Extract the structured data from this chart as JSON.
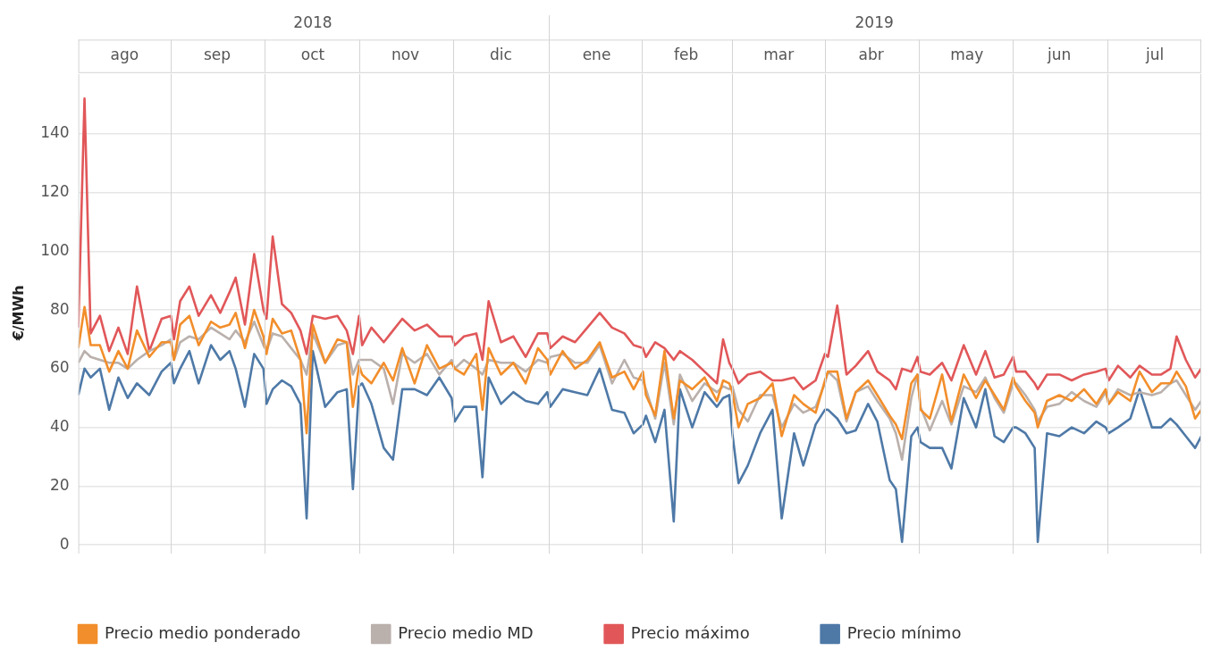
{
  "chart_data": {
    "type": "line",
    "ylabel": "€/MWh",
    "xlim": [
      "2018-08-01",
      "2019-07-31"
    ],
    "ylim": [
      -3,
      161
    ],
    "yticks": [
      0,
      20,
      40,
      60,
      80,
      100,
      120,
      140
    ],
    "xticks": [
      {
        "value": "2018-08-16",
        "label": "ago"
      },
      {
        "value": "2018-09-15",
        "label": "sep"
      },
      {
        "value": "2018-10-16",
        "label": "oct"
      },
      {
        "value": "2018-11-15",
        "label": "nov"
      },
      {
        "value": "2018-12-16",
        "label": "dic"
      },
      {
        "value": "2019-01-16",
        "label": "ene"
      },
      {
        "value": "2019-02-14",
        "label": "feb"
      },
      {
        "value": "2019-03-16",
        "label": "mar"
      },
      {
        "value": "2019-04-15",
        "label": "abr"
      },
      {
        "value": "2019-05-16",
        "label": "may"
      },
      {
        "value": "2019-06-15",
        "label": "jun"
      },
      {
        "value": "2019-07-16",
        "label": "jul"
      }
    ],
    "x2lim": [
      "2018-08-01",
      "2019-07-31"
    ],
    "x2ticks": [
      {
        "value": "2018-10-16",
        "label": "2018"
      },
      {
        "value": "2019-04-16",
        "label": "2019"
      }
    ],
    "grid": true,
    "legend": "bottom",
    "line_style": "solid",
    "x": [
      "2018-08-01",
      "2018-08-03",
      "2018-08-05",
      "2018-08-08",
      "2018-08-11",
      "2018-08-14",
      "2018-08-17",
      "2018-08-20",
      "2018-08-24",
      "2018-08-28",
      "2018-08-31",
      "2018-09-01",
      "2018-09-03",
      "2018-09-06",
      "2018-09-09",
      "2018-09-13",
      "2018-09-16",
      "2018-09-19",
      "2018-09-21",
      "2018-09-24",
      "2018-09-27",
      "2018-09-30",
      "2018-10-01",
      "2018-10-03",
      "2018-10-06",
      "2018-10-09",
      "2018-10-12",
      "2018-10-14",
      "2018-10-16",
      "2018-10-20",
      "2018-10-24",
      "2018-10-27",
      "2018-10-29",
      "2018-10-31",
      "2018-11-01",
      "2018-11-04",
      "2018-11-08",
      "2018-11-11",
      "2018-11-14",
      "2018-11-18",
      "2018-11-22",
      "2018-11-26",
      "2018-11-30",
      "2018-12-01",
      "2018-12-04",
      "2018-12-08",
      "2018-12-10",
      "2018-12-12",
      "2018-12-16",
      "2018-12-20",
      "2018-12-24",
      "2018-12-28",
      "2018-12-31",
      "2019-01-01",
      "2019-01-05",
      "2019-01-09",
      "2019-01-13",
      "2019-01-17",
      "2019-01-21",
      "2019-01-25",
      "2019-01-28",
      "2019-01-31",
      "2019-02-01",
      "2019-02-04",
      "2019-02-07",
      "2019-02-10",
      "2019-02-12",
      "2019-02-16",
      "2019-02-20",
      "2019-02-24",
      "2019-02-26",
      "2019-02-28",
      "2019-03-01",
      "2019-03-03",
      "2019-03-06",
      "2019-03-10",
      "2019-03-14",
      "2019-03-17",
      "2019-03-21",
      "2019-03-24",
      "2019-03-28",
      "2019-03-31",
      "2019-04-01",
      "2019-04-04",
      "2019-04-07",
      "2019-04-10",
      "2019-04-14",
      "2019-04-17",
      "2019-04-21",
      "2019-04-23",
      "2019-04-25",
      "2019-04-28",
      "2019-04-30",
      "2019-05-01",
      "2019-05-04",
      "2019-05-08",
      "2019-05-11",
      "2019-05-15",
      "2019-05-19",
      "2019-05-22",
      "2019-05-25",
      "2019-05-28",
      "2019-05-31",
      "2019-06-01",
      "2019-06-04",
      "2019-06-07",
      "2019-06-08",
      "2019-06-11",
      "2019-06-15",
      "2019-06-19",
      "2019-06-23",
      "2019-06-27",
      "2019-06-30",
      "2019-07-01",
      "2019-07-04",
      "2019-07-08",
      "2019-07-11",
      "2019-07-15",
      "2019-07-18",
      "2019-07-21",
      "2019-07-23",
      "2019-07-26",
      "2019-07-29",
      "2019-07-31"
    ],
    "series": [
      {
        "name": "Precio medio ponderado",
        "color": "#f28e2b",
        "values": [
          67,
          81,
          68,
          68,
          59,
          66,
          60,
          73,
          64,
          69,
          69,
          63,
          75,
          78,
          68,
          76,
          74,
          75,
          79,
          67,
          80,
          71,
          65,
          77,
          72,
          73,
          63,
          38,
          75,
          62,
          70,
          69,
          47,
          61,
          58,
          55,
          62,
          56,
          67,
          55,
          68,
          60,
          62,
          60,
          58,
          65,
          46,
          67,
          58,
          62,
          55,
          67,
          63,
          58,
          66,
          60,
          63,
          69,
          57,
          59,
          53,
          59,
          51,
          44,
          66,
          43,
          56,
          53,
          57,
          49,
          56,
          55,
          52,
          40,
          48,
          50,
          55,
          37,
          51,
          48,
          45,
          56,
          59,
          59,
          43,
          52,
          56,
          51,
          44,
          41,
          36,
          55,
          58,
          46,
          43,
          58,
          42,
          58,
          50,
          56,
          51,
          46,
          57,
          54,
          49,
          45,
          40,
          49,
          51,
          49,
          53,
          48,
          53,
          48,
          52,
          49,
          59,
          52,
          55,
          55,
          59,
          54,
          43,
          46
        ]
      },
      {
        "name": "Precio medio MD",
        "color": "#bab0ac",
        "values": [
          62,
          66,
          64,
          63,
          62,
          62,
          60,
          63,
          66,
          68,
          70,
          63,
          69,
          71,
          70,
          74,
          72,
          70,
          73,
          69,
          76,
          68,
          66,
          72,
          71,
          67,
          63,
          58,
          72,
          62,
          68,
          69,
          58,
          63,
          63,
          63,
          60,
          48,
          65,
          62,
          65,
          58,
          63,
          60,
          63,
          60,
          58,
          63,
          62,
          62,
          59,
          63,
          62,
          64,
          65,
          62,
          62,
          68,
          55,
          63,
          57,
          56,
          53,
          43,
          62,
          41,
          58,
          49,
          55,
          52,
          54,
          53,
          54,
          46,
          42,
          51,
          51,
          40,
          48,
          45,
          47,
          55,
          59,
          56,
          42,
          52,
          54,
          49,
          43,
          38,
          29,
          50,
          58,
          47,
          39,
          49,
          41,
          54,
          52,
          57,
          50,
          45,
          55,
          55,
          51,
          46,
          42,
          47,
          48,
          52,
          49,
          47,
          52,
          48,
          53,
          51,
          52,
          51,
          52,
          55,
          56,
          51,
          46,
          49
        ]
      },
      {
        "name": "Precio máximo",
        "color": "#e15759",
        "values": [
          74,
          152,
          72,
          78,
          66,
          74,
          65,
          88,
          66,
          77,
          78,
          70,
          83,
          88,
          78,
          85,
          79,
          86,
          91,
          75,
          99,
          80,
          77,
          105,
          82,
          79,
          73,
          65,
          78,
          77,
          78,
          73,
          65,
          78,
          68,
          74,
          69,
          73,
          77,
          73,
          75,
          71,
          71,
          68,
          71,
          72,
          63,
          83,
          69,
          71,
          64,
          72,
          72,
          67,
          71,
          69,
          74,
          79,
          74,
          72,
          68,
          67,
          64,
          69,
          67,
          63,
          66,
          63,
          59,
          55,
          70,
          62,
          60,
          55,
          58,
          59,
          56,
          56,
          57,
          53,
          56,
          65,
          64,
          81.5,
          58,
          61,
          66,
          59,
          56,
          53,
          60,
          59,
          64,
          59,
          58,
          62,
          56,
          68,
          58,
          66,
          57,
          58,
          64,
          59,
          59,
          55,
          53,
          58,
          58,
          56,
          58,
          59,
          60,
          56,
          61,
          57,
          61,
          58,
          58,
          60,
          71,
          63,
          57,
          60
        ]
      },
      {
        "name": "Precio mínimo",
        "color": "#4e79a7",
        "values": [
          51,
          60,
          57,
          60,
          46,
          57,
          50,
          55,
          51,
          59,
          62,
          55,
          60,
          66,
          55,
          68,
          63,
          66,
          60,
          47,
          65,
          60,
          48,
          53,
          56,
          54,
          48,
          9,
          66,
          47,
          52,
          53,
          19,
          54,
          55,
          48,
          33,
          29,
          53,
          53,
          51,
          57,
          50,
          42,
          47,
          47,
          23,
          57,
          48,
          52,
          49,
          48,
          52,
          47,
          53,
          52,
          51,
          60,
          46,
          45,
          38,
          41,
          44,
          35,
          46,
          8,
          53,
          40,
          52,
          47,
          50,
          51,
          38,
          21,
          27,
          38,
          46,
          9,
          38,
          27,
          41,
          46,
          46,
          43,
          38,
          39,
          48,
          42,
          22,
          19,
          1,
          37,
          40,
          35,
          33,
          33,
          26,
          50,
          40,
          53,
          37,
          35,
          40,
          40,
          38,
          33,
          1,
          38,
          37,
          40,
          38,
          42,
          40,
          38,
          40,
          43,
          53,
          40,
          40,
          43,
          41,
          37,
          33,
          37
        ]
      }
    ]
  }
}
